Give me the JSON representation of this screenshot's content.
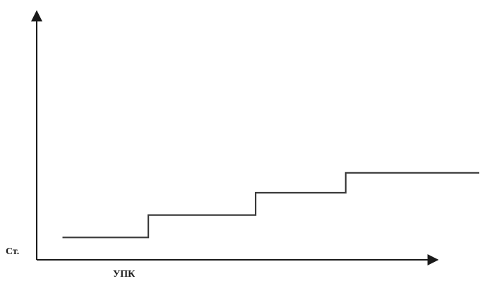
{
  "chart_data": {
    "type": "line",
    "line_style": "step",
    "title": "",
    "xlabel": "УПК",
    "ylabel": "Ст.",
    "grid": false,
    "legend": "none",
    "xlim": [
      0,
      10
    ],
    "ylim": [
      0,
      10
    ],
    "series": [
      {
        "step_points": [
          {
            "x": 0.6,
            "y": 0.9
          },
          {
            "x": 2.6,
            "y": 0.9
          },
          {
            "x": 2.6,
            "y": 1.8
          },
          {
            "x": 5.1,
            "y": 1.8
          },
          {
            "x": 5.1,
            "y": 2.7
          },
          {
            "x": 7.2,
            "y": 2.7
          },
          {
            "x": 7.2,
            "y": 3.5
          },
          {
            "x": 10.5,
            "y": 3.5
          }
        ]
      }
    ],
    "colors": {
      "axis": "#1a1a1a",
      "line": "#3a3a3a"
    }
  }
}
